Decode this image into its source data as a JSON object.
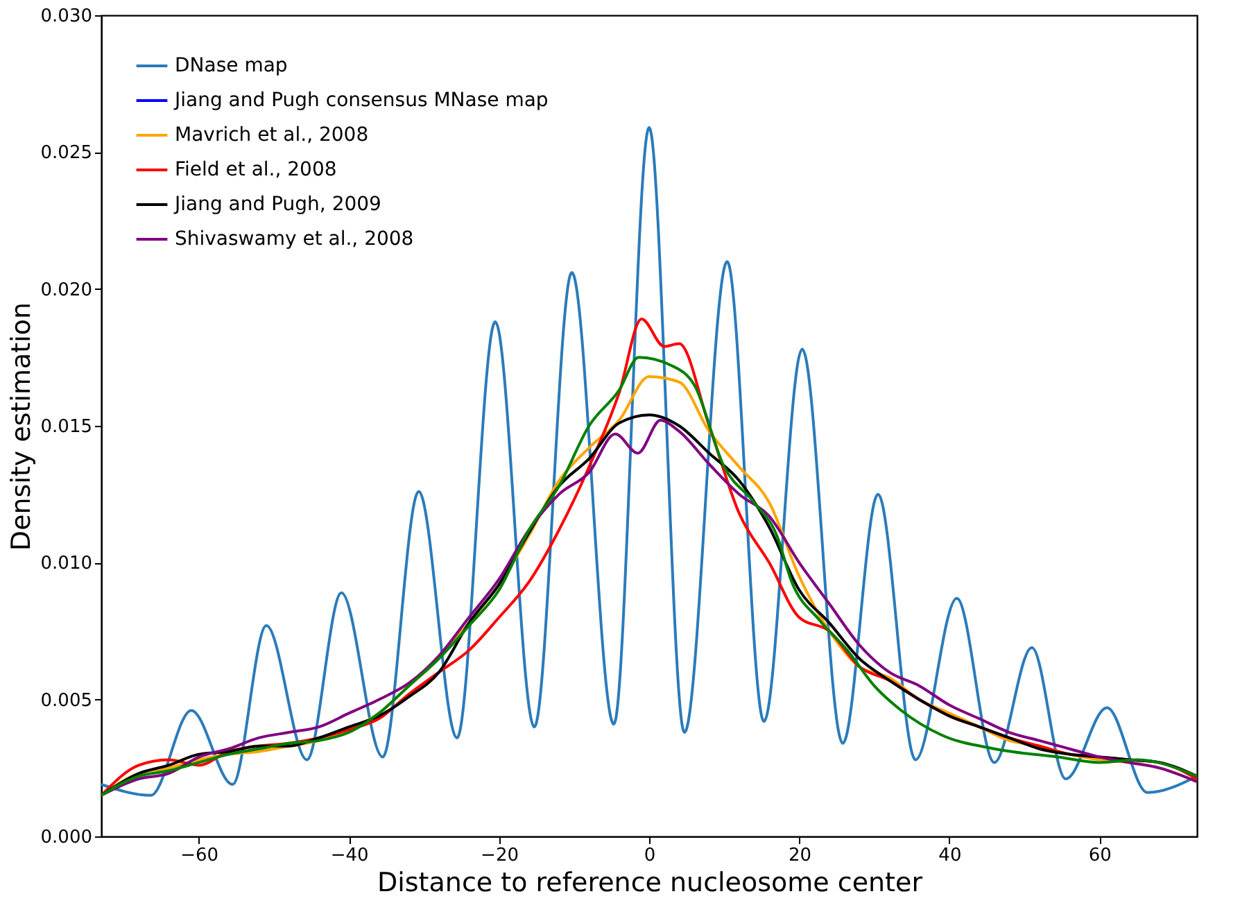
{
  "chart_data": {
    "type": "line",
    "xlabel": "Distance to reference nucleosome center",
    "ylabel": "Density estimation",
    "xlim": [
      -73,
      73
    ],
    "ylim": [
      0,
      0.03
    ],
    "xticks": [
      {
        "value": -60,
        "label": "−60"
      },
      {
        "value": -40,
        "label": "−40"
      },
      {
        "value": -20,
        "label": "−20"
      },
      0,
      20,
      40,
      60
    ],
    "yticks": [
      {
        "value": 0,
        "label": "0.000"
      },
      {
        "value": 0.005,
        "label": "0.005"
      },
      {
        "value": 0.01,
        "label": "0.010"
      },
      {
        "value": 0.015,
        "label": "0.015"
      },
      {
        "value": 0.02,
        "label": "0.020"
      },
      {
        "value": 0.025,
        "label": "0.025"
      },
      {
        "value": 0.03,
        "label": "0.030"
      }
    ],
    "grid": false,
    "legend": "top left",
    "marker": "none",
    "line_style": "solid",
    "series": [
      {
        "name": "DNase map",
        "color": "#2b7bba",
        "x": [
          -73,
          -66.4,
          -61,
          -55.5,
          -51,
          -45.6,
          -41,
          -35.5,
          -30.7,
          -25.6,
          -20.5,
          -15.3,
          -10.3,
          -4.7,
          0,
          4.7,
          10.4,
          15.3,
          20.4,
          25.8,
          30.5,
          35.5,
          41,
          46,
          51,
          55.5,
          61,
          66.4,
          73
        ],
        "values": [
          0.0019,
          0.0015,
          0.0046,
          0.0019,
          0.0077,
          0.0028,
          0.0089,
          0.0029,
          0.0126,
          0.0036,
          0.0188,
          0.004,
          0.0206,
          0.0041,
          0.0259,
          0.0038,
          0.021,
          0.0042,
          0.0178,
          0.0034,
          0.0125,
          0.0028,
          0.0087,
          0.0027,
          0.0069,
          0.0021,
          0.0047,
          0.0016,
          0.0022
        ]
      },
      {
        "name": "Jiang and Pugh consensus MNase map",
        "color": "#0000ff"
      },
      {
        "name": "Mavrich et al., 2008",
        "color": "#ffa500",
        "x": [
          -73,
          -68,
          -64,
          -60,
          -56,
          -52,
          -48,
          -44,
          -40,
          -36,
          -32,
          -28,
          -24,
          -20,
          -16,
          -12,
          -8,
          -4,
          0,
          4,
          8,
          12,
          16,
          20,
          24,
          28,
          32,
          36,
          40,
          44,
          48,
          52,
          56,
          60,
          64,
          68,
          73
        ],
        "values": [
          0.0015,
          0.0023,
          0.0025,
          0.0028,
          0.003,
          0.0031,
          0.0033,
          0.0035,
          0.0039,
          0.0045,
          0.0055,
          0.0065,
          0.0078,
          0.0092,
          0.011,
          0.013,
          0.0142,
          0.0152,
          0.0168,
          0.0166,
          0.0148,
          0.0135,
          0.0122,
          0.0095,
          0.0075,
          0.0062,
          0.0058,
          0.005,
          0.0045,
          0.004,
          0.0035,
          0.0033,
          0.003,
          0.0028,
          0.0027,
          0.0025,
          0.002
        ]
      },
      {
        "name": "Field et al., 2008",
        "color": "#ff0000",
        "x": [
          -73,
          -68,
          -64,
          -60,
          -56,
          -52,
          -48,
          -44,
          -40,
          -36,
          -32,
          -28,
          -24,
          -20,
          -16,
          -12,
          -8,
          -4,
          -1,
          2,
          4,
          8,
          12,
          16,
          20,
          24,
          28,
          32,
          36,
          40,
          44,
          48,
          52,
          56,
          60,
          64,
          68,
          73
        ],
        "values": [
          0.0015,
          0.0026,
          0.0028,
          0.0026,
          0.0031,
          0.0033,
          0.0034,
          0.0036,
          0.0039,
          0.0043,
          0.0052,
          0.006,
          0.0068,
          0.008,
          0.0093,
          0.0112,
          0.0135,
          0.0162,
          0.0189,
          0.0179,
          0.018,
          0.015,
          0.0118,
          0.01,
          0.008,
          0.0075,
          0.0062,
          0.0057,
          0.005,
          0.0044,
          0.004,
          0.0036,
          0.0033,
          0.003,
          0.0029,
          0.0028,
          0.0027,
          0.0021
        ]
      },
      {
        "name": "Jiang and Pugh, 2009",
        "color": "#000000",
        "x": [
          -73,
          -68,
          -64,
          -60,
          -56,
          -52,
          -48,
          -44,
          -40,
          -36,
          -32,
          -28,
          -24,
          -20,
          -16,
          -12,
          -8,
          -4,
          0,
          4,
          8,
          12,
          16,
          20,
          24,
          28,
          32,
          36,
          40,
          44,
          48,
          52,
          56,
          60,
          64,
          68,
          73
        ],
        "values": [
          0.0015,
          0.0023,
          0.0026,
          0.003,
          0.0031,
          0.0033,
          0.0033,
          0.0036,
          0.004,
          0.0044,
          0.0051,
          0.006,
          0.0078,
          0.0092,
          0.0111,
          0.0128,
          0.0138,
          0.0151,
          0.0154,
          0.015,
          0.014,
          0.013,
          0.0113,
          0.009,
          0.0078,
          0.0065,
          0.0057,
          0.005,
          0.0044,
          0.004,
          0.0036,
          0.0032,
          0.003,
          0.0029,
          0.0028,
          0.0027,
          0.0022
        ]
      },
      {
        "name": "Shivaswamy et al., 2008",
        "color": "#800080",
        "x": [
          -73,
          -68,
          -64,
          -60,
          -56,
          -52,
          -48,
          -44,
          -40,
          -36,
          -32,
          -28,
          -24,
          -20,
          -16,
          -12,
          -8,
          -4.5,
          -1.5,
          1.5,
          4,
          8,
          12,
          16,
          20,
          24,
          28,
          32,
          36,
          40,
          44,
          48,
          52,
          56,
          60,
          64,
          68,
          73
        ],
        "values": [
          0.0015,
          0.0021,
          0.0023,
          0.0029,
          0.0032,
          0.0036,
          0.0038,
          0.004,
          0.0045,
          0.005,
          0.0056,
          0.0066,
          0.008,
          0.0094,
          0.0112,
          0.0125,
          0.0133,
          0.0147,
          0.014,
          0.0152,
          0.0148,
          0.0136,
          0.0125,
          0.0117,
          0.01,
          0.0085,
          0.007,
          0.006,
          0.0055,
          0.0048,
          0.0043,
          0.0038,
          0.0035,
          0.0032,
          0.0029,
          0.0027,
          0.0025,
          0.002
        ]
      },
      {
        "color": "#008000",
        "x": [
          -73,
          -68,
          -64,
          -60,
          -56,
          -52,
          -48,
          -44,
          -40,
          -36,
          -32,
          -28,
          -24,
          -20,
          -16,
          -12,
          -8,
          -4,
          -1.4,
          3,
          6,
          10,
          14,
          17,
          19,
          22.7,
          26.4,
          30,
          33.6,
          39,
          46,
          54.5,
          60,
          65,
          73
        ],
        "values": [
          0.0015,
          0.0022,
          0.0024,
          0.0027,
          0.003,
          0.0032,
          0.0034,
          0.0035,
          0.0038,
          0.0045,
          0.0055,
          0.0065,
          0.0077,
          0.009,
          0.0112,
          0.0128,
          0.015,
          0.0163,
          0.0175,
          0.0172,
          0.0165,
          0.0135,
          0.0122,
          0.011,
          0.0093,
          0.0079,
          0.0068,
          0.0055,
          0.0046,
          0.0037,
          0.0032,
          0.0029,
          0.0027,
          0.0028,
          0.0022
        ]
      }
    ]
  }
}
